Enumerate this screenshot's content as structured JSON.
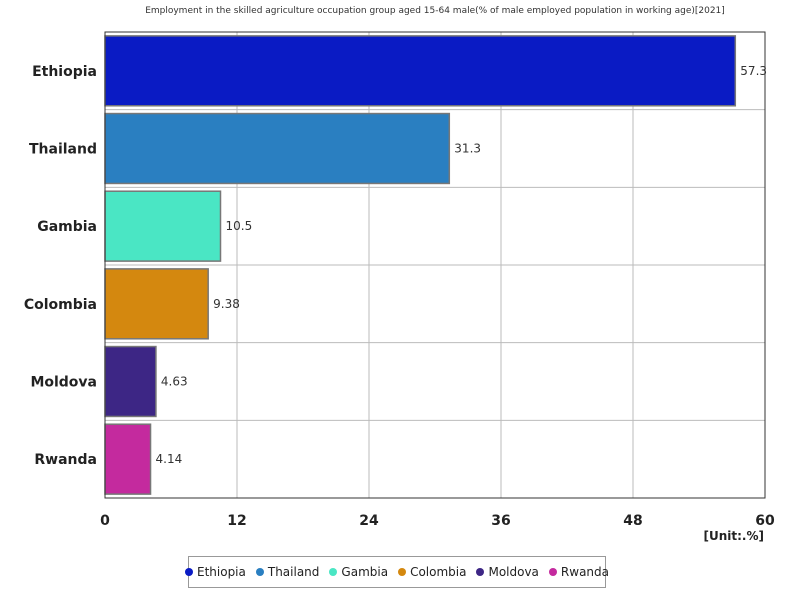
{
  "chart_data": {
    "type": "bar",
    "orientation": "horizontal",
    "title": "Employment in the skilled agriculture occupation group aged 15-64 male(% of male employed population in working age)[2021]",
    "unit_label": "[Unit:.%]",
    "categories": [
      "Ethiopia",
      "Thailand",
      "Gambia",
      "Colombia",
      "Moldova",
      "Rwanda"
    ],
    "values": [
      57.3,
      31.3,
      10.5,
      9.38,
      4.63,
      4.14
    ],
    "value_labels": [
      "57.3",
      "31.3",
      "10.5",
      "9.38",
      "4.63",
      "4.14"
    ],
    "colors": [
      "#0a1bc4",
      "#2a7fc1",
      "#4ae6c4",
      "#d4880f",
      "#3d2685",
      "#c42a9e"
    ],
    "xlim": [
      0,
      60
    ],
    "xticks": [
      0,
      12,
      24,
      36,
      48,
      60
    ],
    "xtick_labels": [
      "0",
      "12",
      "24",
      "36",
      "48",
      "60"
    ],
    "grid": true,
    "legend_position": "bottom"
  }
}
